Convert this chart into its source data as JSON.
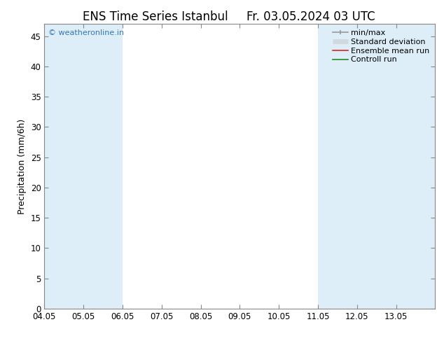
{
  "title_left": "ENS Time Series Istanbul",
  "title_right": "Fr. 03.05.2024 03 UTC",
  "ylabel": "Precipitation (mm/6h)",
  "xlim_min": 0,
  "xlim_max": 10,
  "ylim_min": 0,
  "ylim_max": 47,
  "yticks": [
    0,
    5,
    10,
    15,
    20,
    25,
    30,
    35,
    40,
    45
  ],
  "xtick_labels": [
    "04.05",
    "05.05",
    "06.05",
    "07.05",
    "08.05",
    "09.05",
    "10.05",
    "11.05",
    "12.05",
    "13.05"
  ],
  "shaded_bands": [
    {
      "x_start": 0,
      "x_end": 1,
      "color": "#ddeef8"
    },
    {
      "x_start": 1,
      "x_end": 2,
      "color": "#ddeef8"
    },
    {
      "x_start": 7,
      "x_end": 8,
      "color": "#ddeef8"
    },
    {
      "x_start": 8,
      "x_end": 9,
      "color": "#ddeef8"
    },
    {
      "x_start": 9,
      "x_end": 10,
      "color": "#ddeef8"
    }
  ],
  "watermark_text": "© weatheronline.in",
  "watermark_color": "#3377bb",
  "background_color": "#ffffff",
  "plot_bg_color": "#ffffff",
  "legend_labels": [
    "min/max",
    "Standard deviation",
    "Ensemble mean run",
    "Controll run"
  ],
  "legend_line_colors": [
    "#999999",
    "#cccccc",
    "#dd2222",
    "#228822"
  ],
  "spine_color": "#888888",
  "tick_color": "#444444",
  "title_fontsize": 12,
  "axis_label_fontsize": 9,
  "tick_fontsize": 8.5,
  "legend_fontsize": 8
}
